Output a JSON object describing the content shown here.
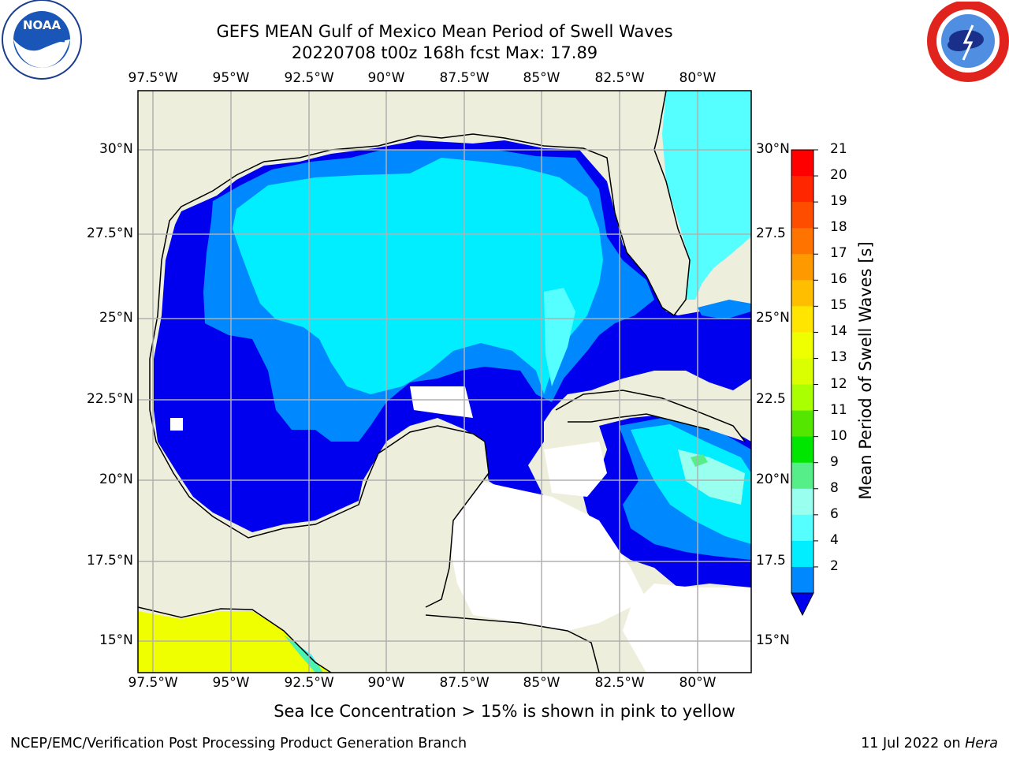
{
  "title_line1": "GEFS MEAN Gulf of Mexico Mean Period of Swell Waves",
  "title_line2": "20220708 t00z 168h fcst   Max: 17.89",
  "lon_labels": [
    "97.5°W",
    "95°W",
    "92.5°W",
    "90°W",
    "87.5°W",
    "85°W",
    "82.5°W",
    "80°W"
  ],
  "lat_labels_left": [
    "30°N",
    "27.5°N",
    "25°N",
    "22.5°N",
    "20°N",
    "17.5°N",
    "15°N"
  ],
  "lat_labels_right": [
    "30°N",
    "27.5",
    "25°N",
    "22.5",
    "20°N",
    "17.5",
    "15°N"
  ],
  "colorbar": {
    "label": "Mean Period of Swell Waves [s]",
    "ticks": [
      "21",
      "20",
      "19",
      "18",
      "17",
      "16",
      "15",
      "14",
      "13",
      "12",
      "11",
      "10",
      "9",
      "8",
      "6",
      "4",
      "2"
    ],
    "colors": [
      "#ff0000",
      "#ff2600",
      "#ff4d00",
      "#ff7300",
      "#ff9900",
      "#ffbf00",
      "#ffe500",
      "#f0ff00",
      "#d9ff00",
      "#aaff00",
      "#55e600",
      "#00e600",
      "#55ee88",
      "#99ffee",
      "#55ffff",
      "#00eeff",
      "#0088ff",
      "#0000ee"
    ]
  },
  "colors": {
    "land": "#eeeedc",
    "no_data": "#ffffff",
    "period_2_4": "#0088ff",
    "period_under_2": "#0000ee",
    "period_4_6": "#00eeff",
    "period_6_8": "#55ffff",
    "period_8_9": "#99ffee",
    "grid": "#b0b0b0",
    "ice_yellow": "#f0ff00"
  },
  "ice_note": "Sea Ice Concentration > 15% is shown in pink to yellow",
  "footer_left": "NCEP/EMC/Verification Post Processing Product Generation Branch",
  "footer_right_date": "11 Jul 2022 on ",
  "footer_right_host": "Hera",
  "logos": {
    "left": "NOAA",
    "right": "NATIONAL WEATHER SERVICE"
  }
}
